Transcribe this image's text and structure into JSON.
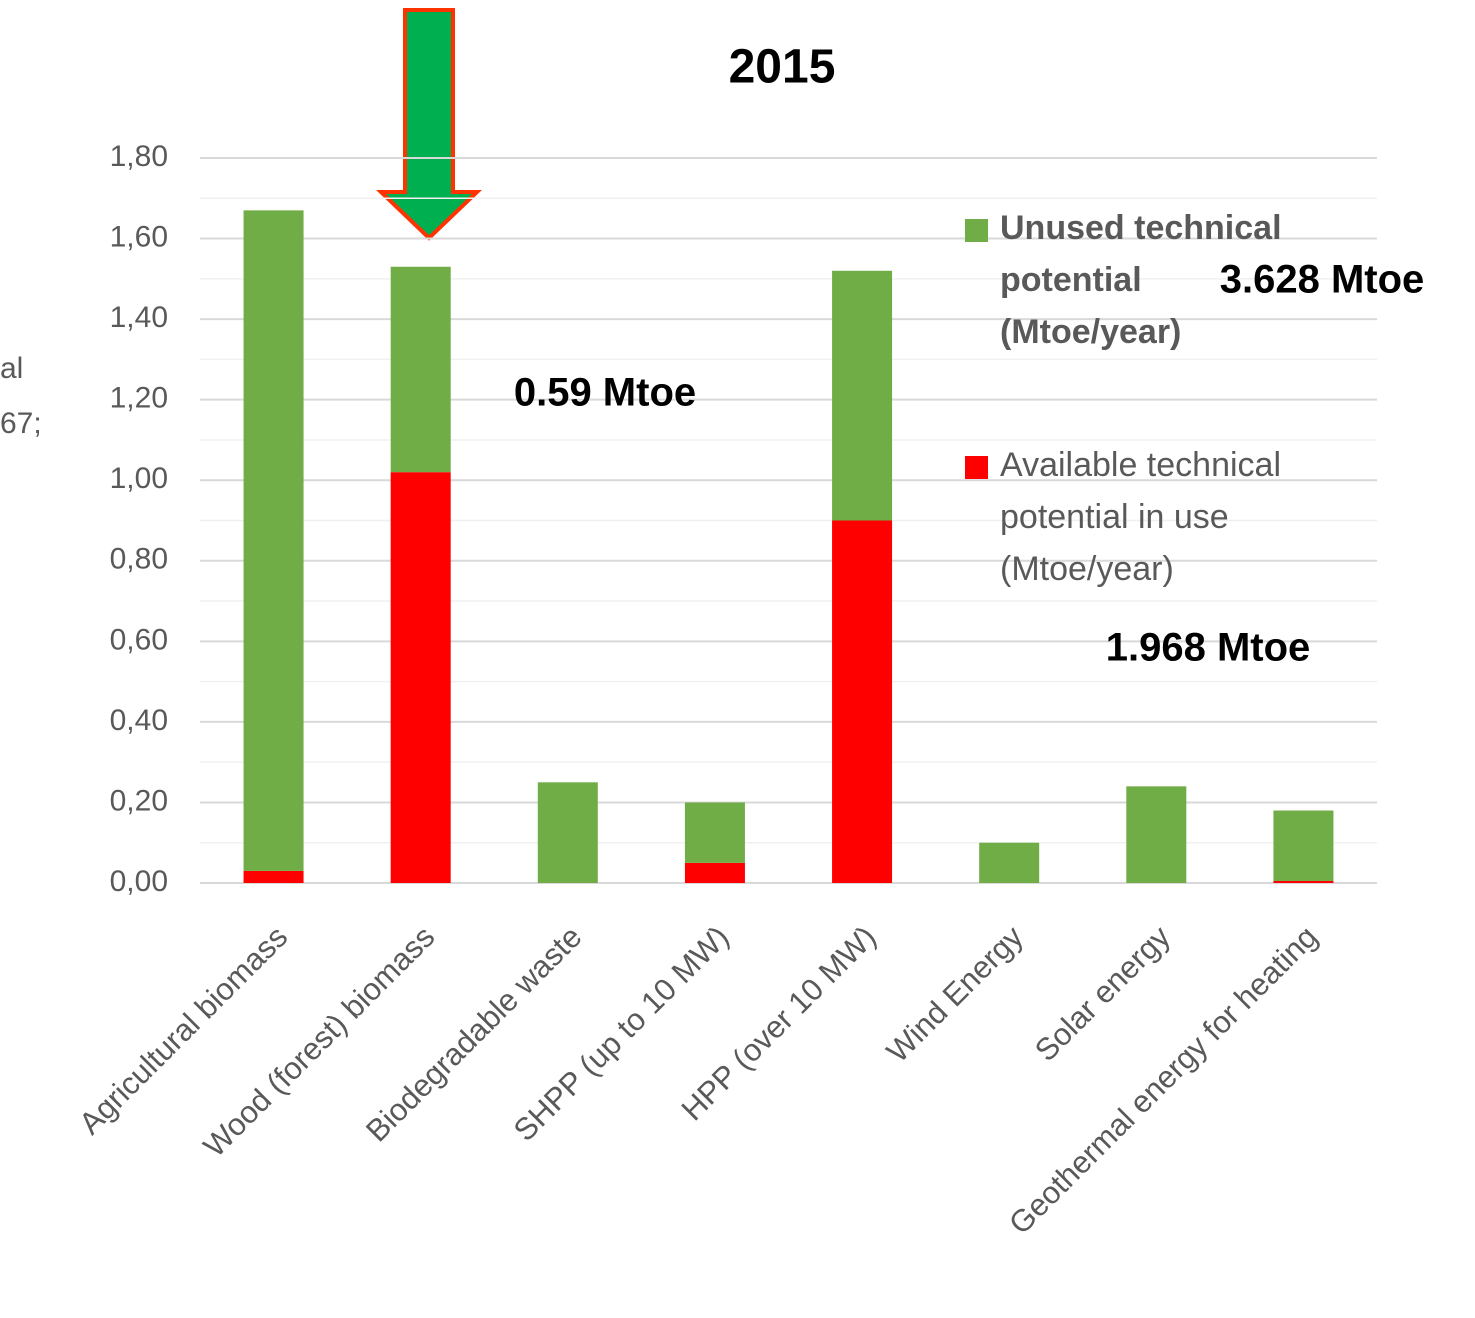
{
  "chart_data": {
    "type": "stacked_bar",
    "title": "2015",
    "categories": [
      "Agricultural biomass",
      "Wood (forest) biomass",
      "Biodegradable waste",
      "SHPP (up to 10 MW)",
      "HPP (over 10 MW)",
      "Wind Energy",
      "Solar energy",
      "Geothermal energy for heating"
    ],
    "series": [
      {
        "name": "Unused technical potential (Mtoe/year)",
        "color": "#70ad47",
        "values": [
          1.64,
          0.51,
          0.25,
          0.15,
          0.62,
          0.1,
          0.24,
          0.175
        ]
      },
      {
        "name": "Available technical potential in use (Mtoe/year)",
        "color": "#ff0000",
        "values": [
          0.03,
          1.02,
          0,
          0.05,
          0.9,
          0,
          0,
          0.005
        ]
      }
    ],
    "ylim": [
      0,
      1.8
    ],
    "yticks": [
      {
        "value": 0,
        "label": "0,00"
      },
      {
        "value": 0.2,
        "label": "0,20"
      },
      {
        "value": 0.4,
        "label": "0,40"
      },
      {
        "value": 0.6,
        "label": "0,60"
      },
      {
        "value": 0.8,
        "label": "0,80"
      },
      {
        "value": 1.0,
        "label": "1,00"
      },
      {
        "value": 1.2,
        "label": "1,20"
      },
      {
        "value": 1.4,
        "label": "1,40"
      },
      {
        "value": 1.6,
        "label": "1,60"
      },
      {
        "value": 1.8,
        "label": "1,80"
      }
    ],
    "grid": true,
    "annotations": [
      "0.59 Mtoe",
      "3.628 Mtoe",
      "1.968 Mtoe",
      "al",
      "67;"
    ]
  }
}
